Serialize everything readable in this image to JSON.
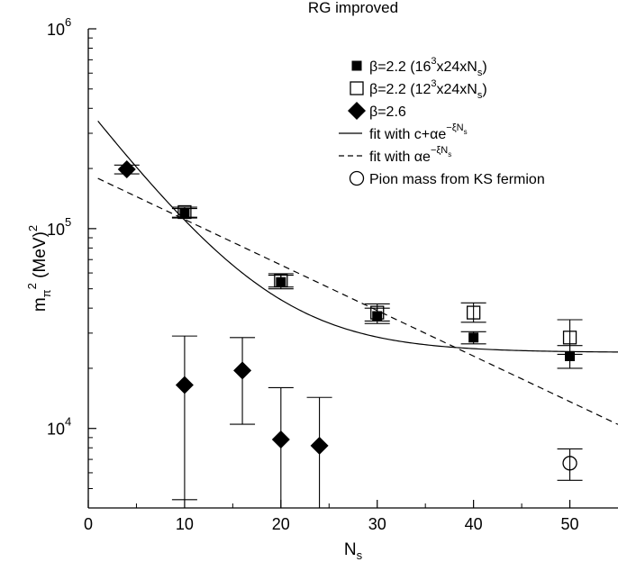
{
  "chart_data": {
    "type": "scatter",
    "title": "RG improved",
    "xlabel_base": "N",
    "xlabel_sub": "s",
    "ylabel": {
      "base": "m",
      "sub": "π",
      "sup": "2",
      "rest": " (MeV)",
      "unit_sup": "2"
    },
    "xlim": [
      0,
      55
    ],
    "ylim": [
      4000,
      1000000
    ],
    "yscale": "log",
    "x_ticks": [
      "0",
      "10",
      "20",
      "30",
      "40",
      "50"
    ],
    "y_ticks": [
      {
        "base": "10",
        "exp": "4",
        "value": 10000
      },
      {
        "base": "10",
        "exp": "5",
        "value": 100000
      },
      {
        "base": "10",
        "exp": "6",
        "value": 1000000
      }
    ],
    "legend": {
      "placement": "top-right",
      "entries": [
        {
          "key": "filled-square",
          "text": "β=2.2  (16",
          "sup": "3",
          "text2": "x24xN",
          "sub": "s",
          "text3": ")"
        },
        {
          "key": "open-square",
          "text": "β=2.2 (12",
          "sup": "3",
          "text2": "x24xN",
          "sub": "s",
          "text3": ")"
        },
        {
          "key": "diamond",
          "text": "β=2.6"
        },
        {
          "key": "solid-line",
          "text": "fit with c+αe",
          "sup": "−ξN",
          "supsub": "s"
        },
        {
          "key": "dashed-line",
          "text": "fit with αe",
          "sup": "−ξN",
          "supsub": "s"
        },
        {
          "key": "open-circle",
          "text": "Pion mass from KS fermion"
        }
      ]
    },
    "series": [
      {
        "name": "β=2.2 (16³x24xNs)",
        "marker": "filled-square",
        "points": [
          {
            "x": 10,
            "y": 119000,
            "ylo": 113000,
            "yhi": 126000
          },
          {
            "x": 20,
            "y": 54000,
            "ylo": 50000,
            "yhi": 58500
          },
          {
            "x": 30,
            "y": 36500,
            "ylo": 33500,
            "yhi": 40000
          },
          {
            "x": 40,
            "y": 28500,
            "ylo": 26500,
            "yhi": 30500
          },
          {
            "x": 50,
            "y": 23000,
            "ylo": 20000,
            "yhi": 26000
          }
        ]
      },
      {
        "name": "β=2.2 (12³x24xNs)",
        "marker": "open-square",
        "points": [
          {
            "x": 10,
            "y": 121000,
            "ylo": 114000,
            "yhi": 128000
          },
          {
            "x": 20,
            "y": 55000,
            "ylo": 51000,
            "yhi": 59500
          },
          {
            "x": 30,
            "y": 38000,
            "ylo": 34500,
            "yhi": 42000
          },
          {
            "x": 40,
            "y": 38000,
            "ylo": 34000,
            "yhi": 42500
          },
          {
            "x": 50,
            "y": 28500,
            "ylo": 23500,
            "yhi": 35000
          }
        ]
      },
      {
        "name": "β=2.6",
        "marker": "diamond",
        "points": [
          {
            "x": 4,
            "y": 198000,
            "ylo": 188000,
            "yhi": 208000
          },
          {
            "x": 10,
            "y": 16500,
            "ylo": 4400,
            "yhi": 29000
          },
          {
            "x": 16,
            "y": 19500,
            "ylo": 10500,
            "yhi": 28500
          },
          {
            "x": 20,
            "y": 8800,
            "ylo": 4000,
            "yhi": 16000
          },
          {
            "x": 24,
            "y": 8200,
            "ylo": 4000,
            "yhi": 14300
          }
        ]
      },
      {
        "name": "Pion mass from KS fermion",
        "marker": "open-circle",
        "points": [
          {
            "x": 50,
            "y": 6700,
            "ylo": 5500,
            "yhi": 7900
          }
        ]
      }
    ],
    "fits": [
      {
        "name": "fit with c+αe^(−ξNs)",
        "style": "solid",
        "c": 24000,
        "alpha": 372000,
        "xi": 0.146,
        "x_range": [
          1,
          55
        ]
      },
      {
        "name": "fit with αe^(−ξNs)",
        "style": "dashed",
        "alpha": 188000,
        "xi": 0.0525,
        "x_range": [
          1,
          55
        ]
      }
    ]
  }
}
